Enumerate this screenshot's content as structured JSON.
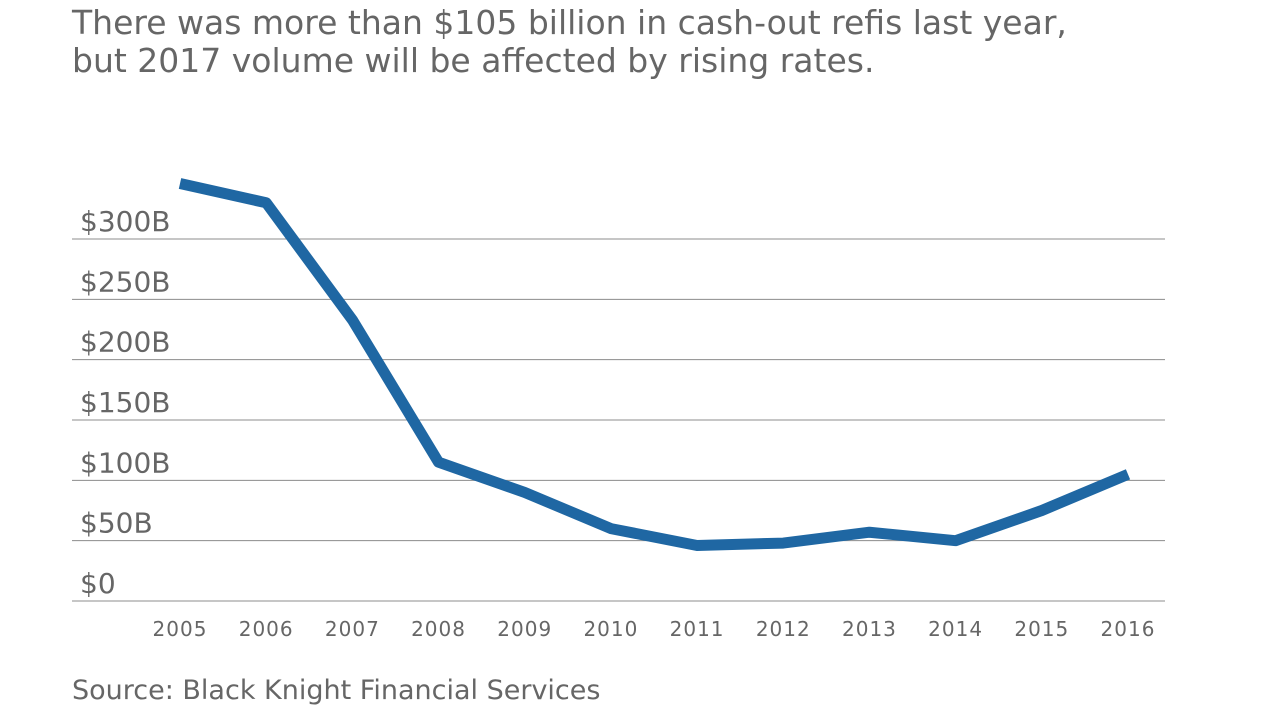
{
  "chart_data": {
    "type": "line",
    "subtitle": [
      "There was more than $105 billion in cash-out refis last year,",
      "but 2017 volume will be affected by rising rates."
    ],
    "categories": [
      "2005",
      "2006",
      "2007",
      "2008",
      "2009",
      "2010",
      "2011",
      "2012",
      "2013",
      "2014",
      "2015",
      "2016"
    ],
    "series": [
      {
        "color": "#1f67a3",
        "values": [
          346,
          330,
          233,
          115,
          90,
          60,
          46,
          48,
          57,
          50,
          75,
          105
        ]
      }
    ],
    "ylim": [
      0,
      350
    ],
    "yticks": [
      {
        "value": 0,
        "label": "$0"
      },
      {
        "value": 50,
        "label": "$50B"
      },
      {
        "value": 100,
        "label": "$100B"
      },
      {
        "value": 150,
        "label": "$150B"
      },
      {
        "value": 200,
        "label": "$200B"
      },
      {
        "value": 250,
        "label": "$250B"
      },
      {
        "value": 300,
        "label": "$300B"
      }
    ],
    "grid": true,
    "source": "Source: Black Knight Financial Services"
  }
}
